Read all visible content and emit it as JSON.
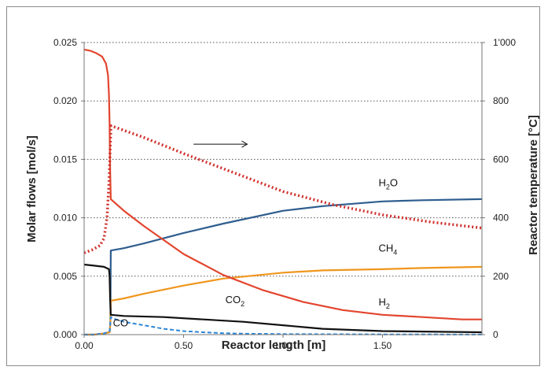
{
  "chart_data": {
    "type": "line",
    "title": "",
    "xlabel": "Reactor length [m]",
    "ylabel": "Molar flows [mol/s]",
    "y2label": "Reactor temperature [°C]",
    "xlim": [
      0,
      2.0
    ],
    "ylim": [
      0,
      0.025
    ],
    "y2lim": [
      0,
      1000
    ],
    "x_ticks": [
      "0.00",
      "0.50",
      "1.00",
      "1.50"
    ],
    "x_tick_values": [
      0,
      0.5,
      1.0,
      1.5
    ],
    "y_ticks": [
      "0.000",
      "0.005",
      "0.010",
      "0.015",
      "0.020",
      "0.025"
    ],
    "y_tick_values": [
      0,
      0.005,
      0.01,
      0.015,
      0.02,
      0.025
    ],
    "y2_ticks": [
      "0",
      "200",
      "400",
      "600",
      "800",
      "1'000"
    ],
    "y2_tick_values": [
      0,
      200,
      400,
      600,
      800,
      1000
    ],
    "grid": "horizontal dotted",
    "series": [
      {
        "name": "H2O",
        "axis": "left",
        "color": "#2e5d8f",
        "style": "solid",
        "x": [
          0,
          0.05,
          0.1,
          0.128,
          0.132,
          0.134,
          0.2,
          0.3,
          0.5,
          0.7,
          1.0,
          1.2,
          1.5,
          1.7,
          2.0
        ],
        "y": [
          0,
          0,
          0.0001,
          0.0002,
          0.001,
          0.0072,
          0.0074,
          0.0078,
          0.0087,
          0.0095,
          0.0106,
          0.011,
          0.0114,
          0.0115,
          0.0116
        ]
      },
      {
        "name": "CH4",
        "axis": "left",
        "color": "#f0961e",
        "style": "solid",
        "x": [
          0,
          0.05,
          0.1,
          0.128,
          0.132,
          0.134,
          0.2,
          0.3,
          0.5,
          0.7,
          1.0,
          1.2,
          1.5,
          1.7,
          2.0
        ],
        "y": [
          0,
          0,
          0.0001,
          0.0002,
          0.001,
          0.0029,
          0.0031,
          0.0035,
          0.0042,
          0.0048,
          0.0053,
          0.0055,
          0.0056,
          0.0057,
          0.0058
        ]
      },
      {
        "name": "H2",
        "axis": "left",
        "color": "#e2452e",
        "style": "solid",
        "x": [
          0,
          0.03,
          0.06,
          0.09,
          0.11,
          0.12,
          0.125,
          0.128,
          0.131,
          0.134,
          0.2,
          0.3,
          0.5,
          0.7,
          0.9,
          1.1,
          1.3,
          1.5,
          1.7,
          1.9,
          2.0
        ],
        "y": [
          0.0244,
          0.0243,
          0.0241,
          0.0238,
          0.0232,
          0.0222,
          0.0205,
          0.018,
          0.014,
          0.0116,
          0.0106,
          0.0093,
          0.0069,
          0.0051,
          0.0038,
          0.0028,
          0.0021,
          0.0017,
          0.0015,
          0.0013,
          0.0013
        ]
      },
      {
        "name": "CO2",
        "axis": "left",
        "color": "#111111",
        "style": "solid",
        "x": [
          0,
          0.05,
          0.1,
          0.125,
          0.128,
          0.131,
          0.134,
          0.2,
          0.4,
          0.6,
          0.8,
          1.0,
          1.2,
          1.5,
          2.0
        ],
        "y": [
          0.006,
          0.0059,
          0.0058,
          0.0056,
          0.005,
          0.003,
          0.0017,
          0.0016,
          0.0015,
          0.0013,
          0.0011,
          0.0008,
          0.0005,
          0.0003,
          0.0002
        ]
      },
      {
        "name": "CO",
        "axis": "left",
        "color": "#2e86d6",
        "style": "dashed",
        "x": [
          0,
          0.05,
          0.1,
          0.128,
          0.134,
          0.16,
          0.2,
          0.3,
          0.4,
          0.5,
          0.6,
          0.7,
          0.8,
          1.0,
          1.5,
          2.0
        ],
        "y": [
          0,
          0,
          0.0001,
          0.0003,
          0.0015,
          0.0013,
          0.0011,
          0.0008,
          0.0005,
          0.0003,
          0.0002,
          0.00012,
          8e-05,
          5e-05,
          2e-05,
          1e-05
        ]
      },
      {
        "name": "Reactor temperature",
        "axis": "right",
        "color": "#d0312d",
        "style": "dotted",
        "x": [
          0,
          0.04,
          0.08,
          0.1,
          0.115,
          0.125,
          0.13,
          0.135,
          0.3,
          0.5,
          0.75,
          1.0,
          1.25,
          1.5,
          1.75,
          2.0
        ],
        "y": [
          280,
          290,
          305,
          330,
          400,
          520,
          620,
          715,
          675,
          620,
          555,
          490,
          445,
          410,
          385,
          365
        ]
      }
    ],
    "annotations": [
      {
        "text": "H",
        "sub": "2",
        "tail": "O",
        "x": 1.48,
        "y": 0.0127,
        "axis": "left"
      },
      {
        "text": "CH",
        "sub": "4",
        "tail": "",
        "x": 1.48,
        "y": 0.0071,
        "axis": "left"
      },
      {
        "text": "H",
        "sub": "2",
        "tail": "",
        "x": 1.48,
        "y": 0.0025,
        "axis": "left"
      },
      {
        "text": "CO",
        "sub": "2",
        "tail": "",
        "x": 0.71,
        "y": 0.0027,
        "axis": "left"
      },
      {
        "text": "CO",
        "sub": "",
        "tail": "",
        "x": 0.145,
        "y": 0.0007,
        "axis": "left"
      }
    ],
    "arrow": {
      "x1": 0.55,
      "x2": 0.82,
      "y": 0.0163,
      "axis": "left"
    }
  }
}
